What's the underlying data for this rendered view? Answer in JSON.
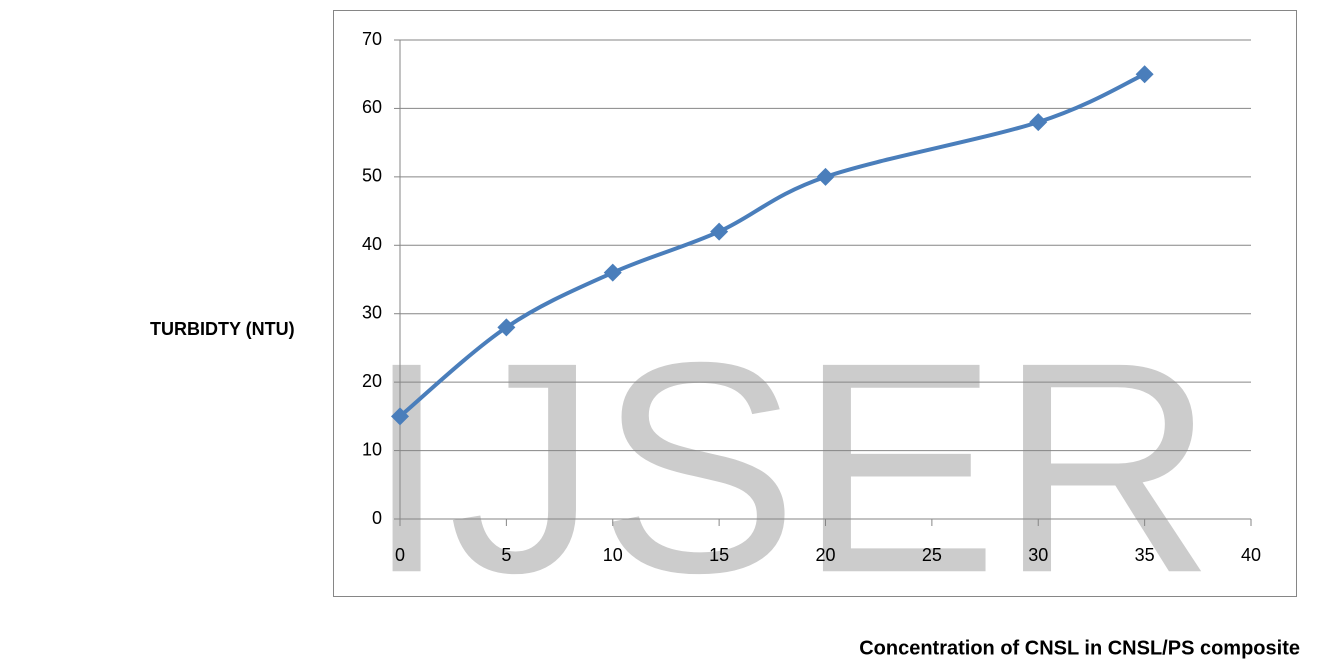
{
  "watermark": "IJSER",
  "chart_data": {
    "type": "line",
    "y_label": "TURBIDTY (NTU)",
    "x_label": "Concentration of CNSL in CNSL/PS composite",
    "x": [
      0,
      5,
      10,
      15,
      20,
      30,
      35
    ],
    "series": [
      {
        "color": "#4a7ebb",
        "values": [
          15,
          28,
          36,
          42,
          50,
          58,
          65
        ]
      }
    ],
    "xlim": [
      0,
      40
    ],
    "xticks": [
      0,
      5,
      10,
      15,
      20,
      25,
      30,
      35,
      40
    ],
    "ylim": [
      0,
      70
    ],
    "yticks": [
      0,
      10,
      20,
      30,
      40,
      50,
      60,
      70
    ],
    "grid": true
  }
}
